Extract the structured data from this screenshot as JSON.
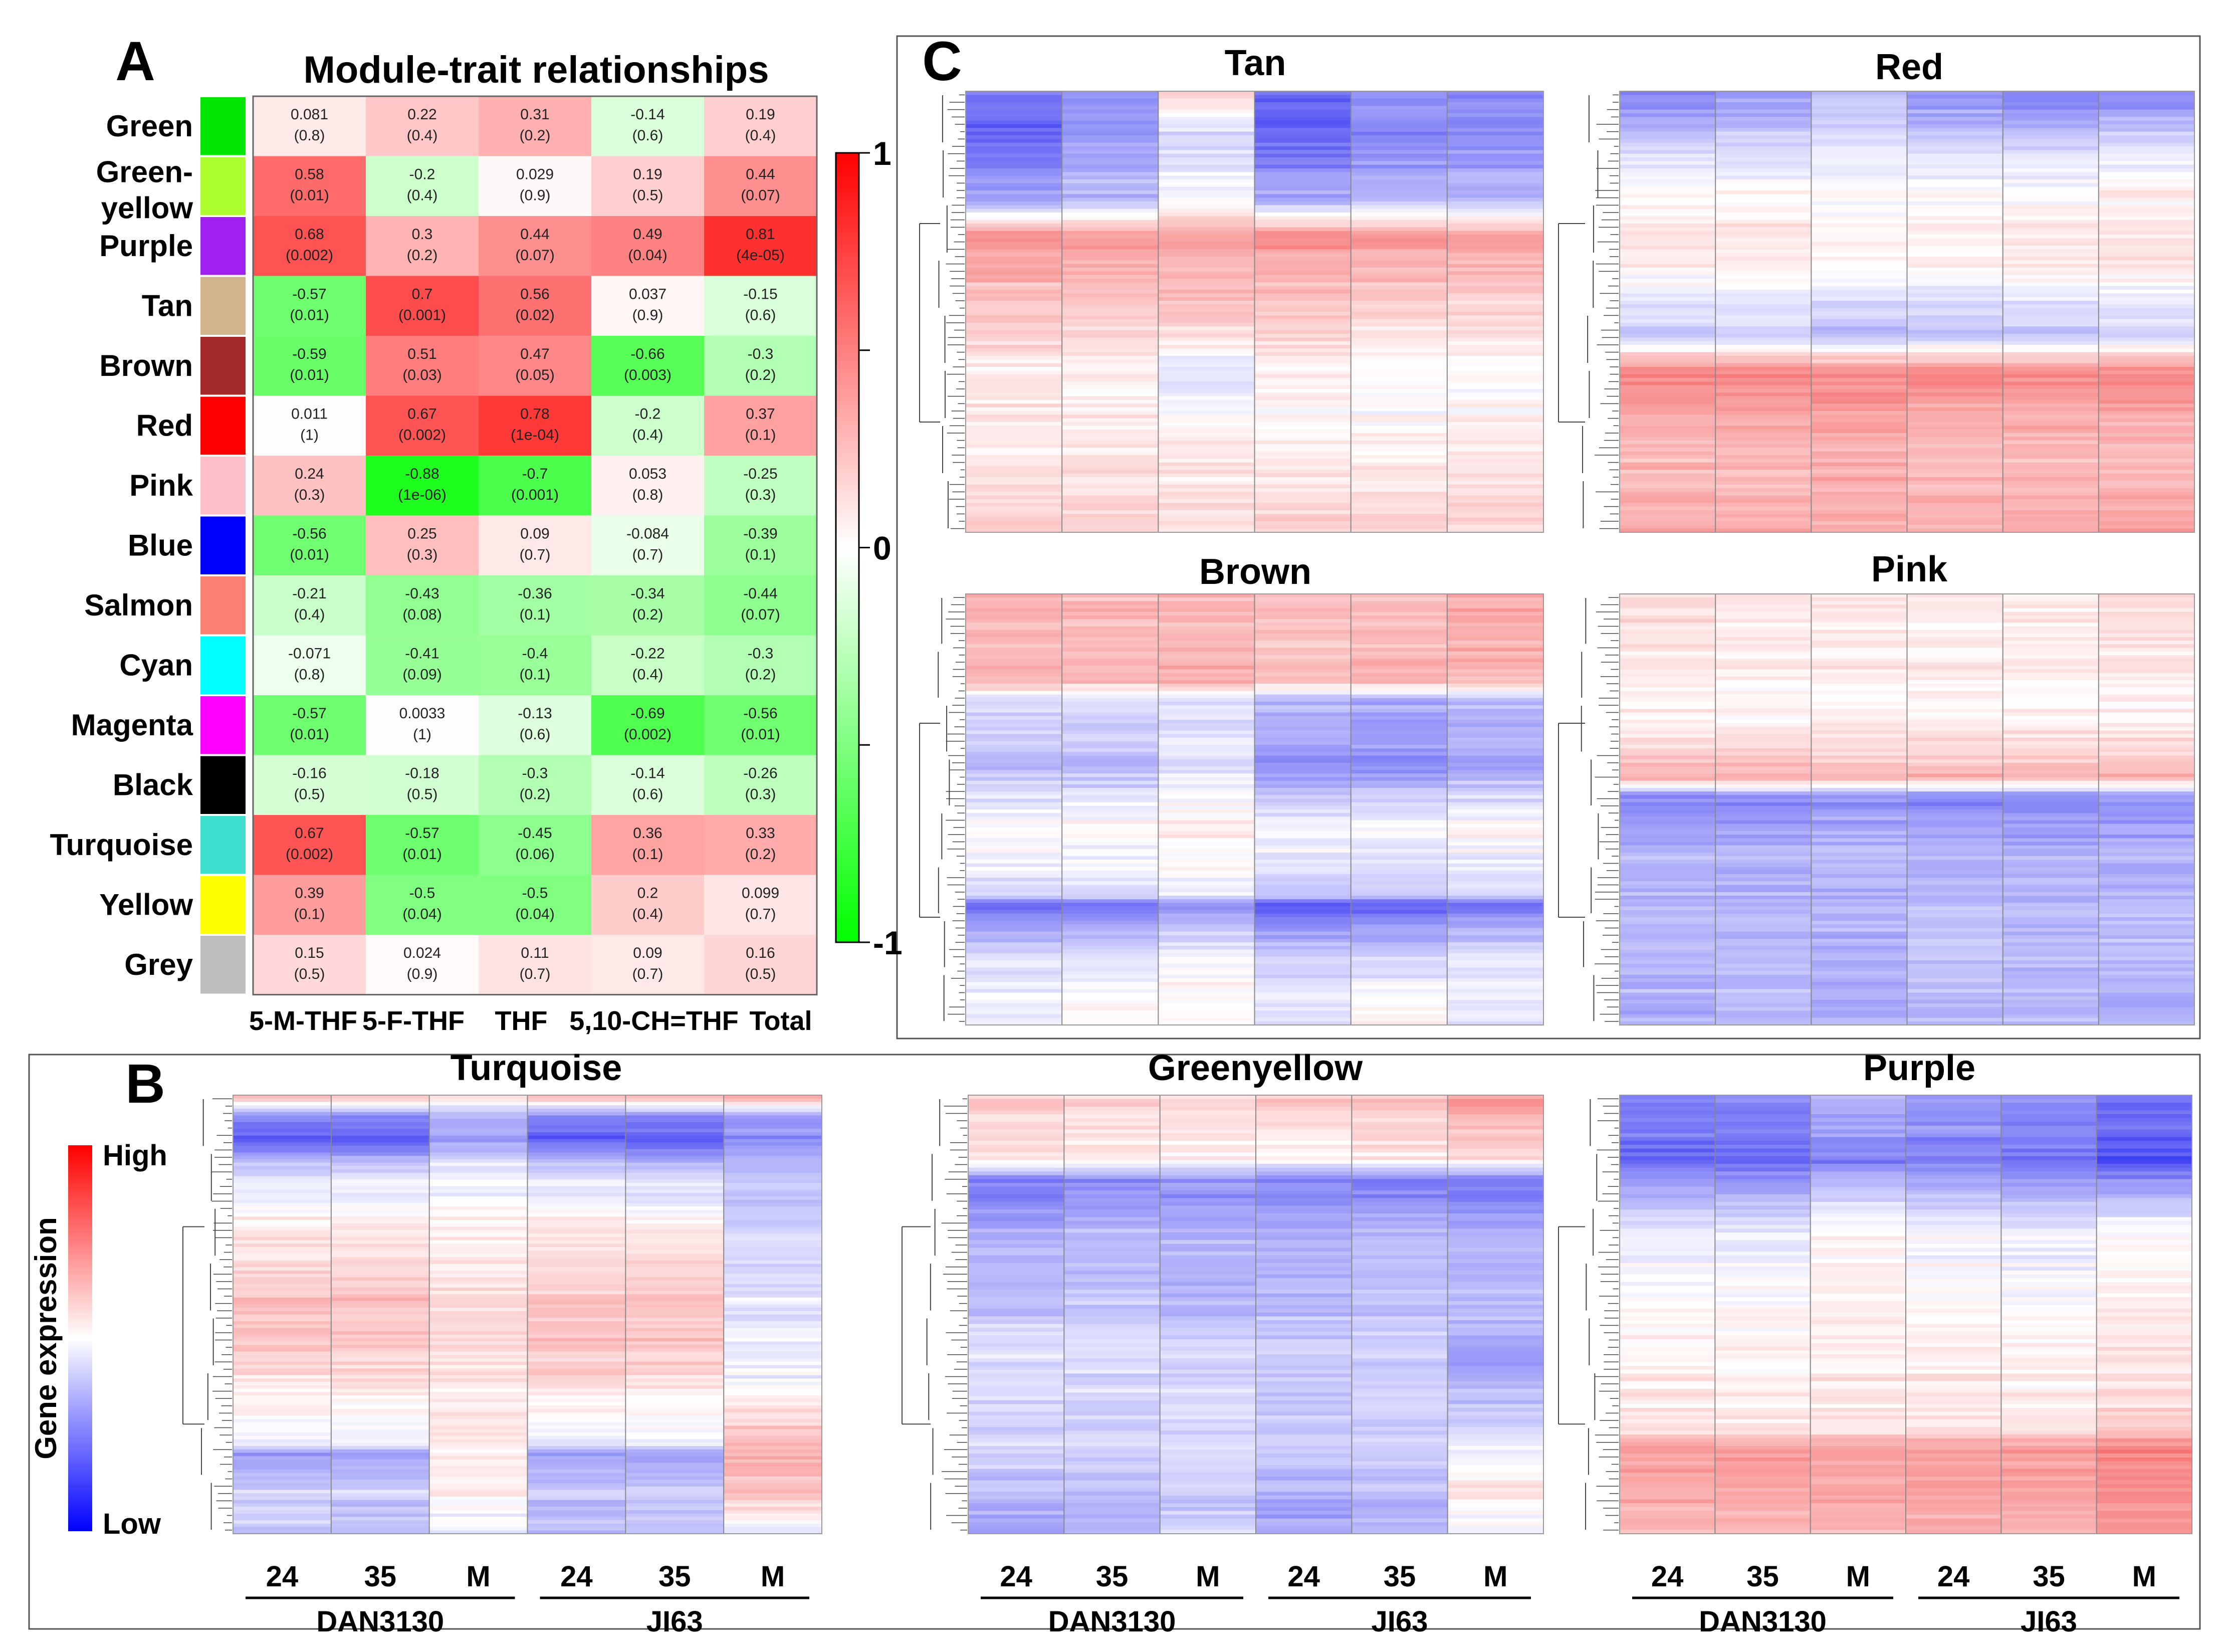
{
  "panels": {
    "a": "A",
    "b": "B",
    "c": "C"
  },
  "chart_data": [
    {
      "type": "heatmap",
      "panel": "A",
      "title": "Module-trait relationships",
      "modules": [
        "Green",
        "Green-yellow",
        "Purple",
        "Tan",
        "Brown",
        "Red",
        "Pink",
        "Blue",
        "Salmon",
        "Cyan",
        "Magenta",
        "Black",
        "Turquoise",
        "Yellow",
        "Grey"
      ],
      "module_colors": [
        "#00e600",
        "#adff2f",
        "#a020f0",
        "#d2b48c",
        "#a52a2a",
        "#ff0000",
        "#ffc0cb",
        "#0000ff",
        "#fa8072",
        "#00ffff",
        "#ff00ff",
        "#000000",
        "#40e0d0",
        "#ffff00",
        "#bebebe"
      ],
      "traits": [
        "5-M-THF",
        "5-F-THF",
        "THF",
        "5,10-CH=THF",
        "Total"
      ],
      "correlations": [
        [
          0.081,
          0.22,
          0.31,
          -0.14,
          0.19
        ],
        [
          0.58,
          -0.2,
          0.029,
          0.19,
          0.44
        ],
        [
          0.68,
          0.3,
          0.44,
          0.49,
          0.81
        ],
        [
          -0.57,
          0.7,
          0.56,
          0.037,
          -0.15
        ],
        [
          -0.59,
          0.51,
          0.47,
          -0.66,
          -0.3
        ],
        [
          0.011,
          0.67,
          0.78,
          -0.2,
          0.37
        ],
        [
          0.24,
          -0.88,
          -0.7,
          0.053,
          -0.25
        ],
        [
          -0.56,
          0.25,
          0.09,
          -0.084,
          -0.39
        ],
        [
          -0.21,
          -0.43,
          -0.36,
          -0.34,
          -0.44
        ],
        [
          -0.071,
          -0.41,
          -0.4,
          -0.22,
          -0.3
        ],
        [
          -0.57,
          0.0033,
          -0.13,
          -0.69,
          -0.56
        ],
        [
          -0.16,
          -0.18,
          -0.3,
          -0.14,
          -0.26
        ],
        [
          0.67,
          -0.57,
          -0.45,
          0.36,
          0.33
        ],
        [
          0.39,
          -0.5,
          -0.5,
          0.2,
          0.099
        ],
        [
          0.15,
          0.024,
          0.11,
          0.09,
          0.16
        ]
      ],
      "corr_labels": [
        [
          "0.081",
          "0.22",
          "0.31",
          "-0.14",
          "0.19"
        ],
        [
          "0.58",
          "-0.2",
          "0.029",
          "0.19",
          "0.44"
        ],
        [
          "0.68",
          "0.3",
          "0.44",
          "0.49",
          "0.81"
        ],
        [
          "-0.57",
          "0.7",
          "0.56",
          "0.037",
          "-0.15"
        ],
        [
          "-0.59",
          "0.51",
          "0.47",
          "-0.66",
          "-0.3"
        ],
        [
          "0.011",
          "0.67",
          "0.78",
          "-0.2",
          "0.37"
        ],
        [
          "0.24",
          "-0.88",
          "-0.7",
          "0.053",
          "-0.25"
        ],
        [
          "-0.56",
          "0.25",
          "0.09",
          "-0.084",
          "-0.39"
        ],
        [
          "-0.21",
          "-0.43",
          "-0.36",
          "-0.34",
          "-0.44"
        ],
        [
          "-0.071",
          "-0.41",
          "-0.4",
          "-0.22",
          "-0.3"
        ],
        [
          "-0.57",
          "0.0033",
          "-0.13",
          "-0.69",
          "-0.56"
        ],
        [
          "-0.16",
          "-0.18",
          "-0.3",
          "-0.14",
          "-0.26"
        ],
        [
          "0.67",
          "-0.57",
          "-0.45",
          "0.36",
          "0.33"
        ],
        [
          "0.39",
          "-0.5",
          "-0.5",
          "0.2",
          "0.099"
        ],
        [
          "0.15",
          "0.024",
          "0.11",
          "0.09",
          "0.16"
        ]
      ],
      "pvalues": [
        [
          "(0.8)",
          "(0.4)",
          "(0.2)",
          "(0.6)",
          "(0.4)"
        ],
        [
          "(0.01)",
          "(0.4)",
          "(0.9)",
          "(0.5)",
          "(0.07)"
        ],
        [
          "(0.002)",
          "(0.2)",
          "(0.07)",
          "(0.04)",
          "(4e-05)"
        ],
        [
          "(0.01)",
          "(0.001)",
          "(0.02)",
          "(0.9)",
          "(0.6)"
        ],
        [
          "(0.01)",
          "(0.03)",
          "(0.05)",
          "(0.003)",
          "(0.2)"
        ],
        [
          "(1)",
          "(0.002)",
          "(1e-04)",
          "(0.4)",
          "(0.1)"
        ],
        [
          "(0.3)",
          "(1e-06)",
          "(0.001)",
          "(0.8)",
          "(0.3)"
        ],
        [
          "(0.01)",
          "(0.3)",
          "(0.7)",
          "(0.7)",
          "(0.1)"
        ],
        [
          "(0.4)",
          "(0.08)",
          "(0.1)",
          "(0.2)",
          "(0.07)"
        ],
        [
          "(0.8)",
          "(0.09)",
          "(0.1)",
          "(0.4)",
          "(0.2)"
        ],
        [
          "(0.01)",
          "(1)",
          "(0.6)",
          "(0.002)",
          "(0.01)"
        ],
        [
          "(0.5)",
          "(0.5)",
          "(0.2)",
          "(0.6)",
          "(0.3)"
        ],
        [
          "(0.002)",
          "(0.01)",
          "(0.06)",
          "(0.1)",
          "(0.2)"
        ],
        [
          "(0.1)",
          "(0.04)",
          "(0.04)",
          "(0.4)",
          "(0.7)"
        ],
        [
          "(0.5)",
          "(0.9)",
          "(0.7)",
          "(0.7)",
          "(0.5)"
        ]
      ],
      "colorbar": {
        "range": [
          -1,
          1
        ],
        "labels": [
          "1",
          "0",
          "-1"
        ],
        "high_color": "#ff0000",
        "mid_color": "#ffffff",
        "low_color": "#00ff00"
      }
    },
    {
      "type": "heatmap",
      "panel": "B",
      "legend": {
        "title": "Gene expression",
        "high": "High",
        "low": "Low"
      },
      "column_labels": [
        "24",
        "35",
        "M",
        "24",
        "35",
        "M"
      ],
      "group_labels": [
        "DAN3130",
        "JI63"
      ],
      "heatmaps": [
        {
          "title": "Turquoise",
          "profile": [
            [
              0,
              0.35,
              0.35,
              0.2,
              0.35,
              0.35,
              0.5
            ],
            [
              0.05,
              -0.5,
              -0.5,
              -0.3,
              -0.5,
              -0.5,
              -0.4
            ],
            [
              0.1,
              -0.75,
              -0.75,
              -0.45,
              -0.75,
              -0.75,
              -0.5
            ],
            [
              0.15,
              -0.25,
              -0.25,
              -0.1,
              -0.25,
              -0.3,
              -0.3
            ],
            [
              0.3,
              0.1,
              0.1,
              0.05,
              0.1,
              0.1,
              -0.2
            ],
            [
              0.5,
              0.3,
              0.3,
              0.2,
              0.3,
              0.3,
              -0.1
            ],
            [
              0.65,
              0.15,
              0.15,
              0.1,
              0.2,
              0.15,
              -0.05
            ],
            [
              0.8,
              -0.1,
              -0.1,
              0.1,
              -0.1,
              -0.1,
              0.35
            ],
            [
              0.82,
              -0.5,
              -0.45,
              0.05,
              -0.45,
              -0.45,
              0.3
            ],
            [
              0.9,
              -0.2,
              -0.2,
              0.05,
              -0.25,
              -0.2,
              0.3
            ],
            [
              1,
              -0.25,
              -0.3,
              -0.1,
              -0.3,
              -0.3,
              -0.1
            ]
          ]
        },
        {
          "title": "Greenyellow",
          "profile": [
            [
              0,
              0.25,
              0.2,
              0.2,
              0.25,
              0.3,
              0.45
            ],
            [
              0.15,
              0.1,
              0.1,
              0.05,
              0.05,
              0.1,
              0.15
            ],
            [
              0.2,
              -0.6,
              -0.55,
              -0.5,
              -0.55,
              -0.6,
              -0.65
            ],
            [
              0.3,
              -0.35,
              -0.3,
              -0.35,
              -0.35,
              -0.3,
              -0.35
            ],
            [
              0.5,
              -0.25,
              -0.25,
              -0.3,
              -0.3,
              -0.25,
              -0.3
            ],
            [
              0.6,
              -0.15,
              -0.15,
              -0.2,
              -0.25,
              -0.2,
              -0.45
            ],
            [
              0.8,
              -0.2,
              -0.2,
              -0.15,
              -0.25,
              -0.2,
              -0.1
            ],
            [
              0.92,
              -0.3,
              -0.3,
              -0.25,
              -0.35,
              -0.3,
              0.15
            ],
            [
              1,
              -0.45,
              -0.35,
              -0.2,
              -0.45,
              -0.35,
              -0.1
            ]
          ]
        },
        {
          "title": "Purple",
          "profile": [
            [
              0,
              -0.55,
              -0.5,
              -0.35,
              -0.45,
              -0.5,
              -0.6
            ],
            [
              0.15,
              -0.65,
              -0.65,
              -0.55,
              -0.55,
              -0.6,
              -0.75
            ],
            [
              0.3,
              -0.1,
              -0.1,
              0.05,
              -0.05,
              -0.1,
              0
            ],
            [
              0.55,
              0.05,
              0.05,
              0.1,
              0.05,
              0.05,
              0.1
            ],
            [
              0.76,
              0.1,
              0.1,
              0.1,
              0.1,
              0.1,
              0.2
            ],
            [
              0.8,
              0.45,
              0.45,
              0.45,
              0.45,
              0.45,
              0.55
            ],
            [
              1,
              0.3,
              0.3,
              0.3,
              0.35,
              0.35,
              0.45
            ]
          ]
        }
      ]
    },
    {
      "type": "heatmap",
      "panel": "C",
      "heatmaps": [
        {
          "title": "Tan",
          "profile": [
            [
              0,
              -0.55,
              -0.45,
              0.25,
              -0.65,
              -0.45,
              -0.5
            ],
            [
              0.1,
              -0.7,
              -0.45,
              -0.2,
              -0.7,
              -0.55,
              -0.5
            ],
            [
              0.25,
              -0.4,
              -0.3,
              0,
              -0.35,
              -0.3,
              -0.3
            ],
            [
              0.33,
              0.5,
              0.45,
              0.4,
              0.5,
              0.45,
              0.45
            ],
            [
              0.5,
              0.2,
              0.2,
              0.25,
              0.2,
              0.15,
              0.15
            ],
            [
              0.65,
              0.1,
              0.05,
              -0.15,
              0.05,
              0,
              0
            ],
            [
              0.8,
              0.1,
              0.1,
              0.1,
              0.05,
              0.05,
              0.1
            ],
            [
              1,
              0.2,
              0.2,
              0.15,
              0.2,
              0.2,
              0.2
            ]
          ]
        },
        {
          "title": "Red",
          "profile": [
            [
              0,
              -0.55,
              -0.45,
              -0.3,
              -0.5,
              -0.6,
              -0.55
            ],
            [
              0.15,
              -0.1,
              -0.1,
              -0.05,
              -0.1,
              -0.1,
              -0.05
            ],
            [
              0.35,
              0.15,
              0.15,
              0.1,
              0.1,
              0.15,
              0.15
            ],
            [
              0.55,
              -0.25,
              -0.2,
              -0.3,
              -0.25,
              -0.25,
              -0.2
            ],
            [
              0.64,
              0.55,
              0.55,
              0.55,
              0.55,
              0.55,
              0.55
            ],
            [
              0.8,
              0.3,
              0.3,
              0.35,
              0.3,
              0.3,
              0.3
            ],
            [
              1,
              0.35,
              0.35,
              0.35,
              0.35,
              0.35,
              0.4
            ]
          ]
        },
        {
          "title": "Brown",
          "profile": [
            [
              0,
              0.3,
              0.3,
              0.3,
              0.25,
              0.3,
              0.35
            ],
            [
              0.2,
              0.35,
              0.3,
              0.35,
              0.3,
              0.35,
              0.35
            ],
            [
              0.25,
              -0.15,
              -0.15,
              -0.1,
              -0.3,
              -0.35,
              -0.3
            ],
            [
              0.4,
              -0.3,
              -0.3,
              -0.15,
              -0.5,
              -0.5,
              -0.4
            ],
            [
              0.55,
              0.05,
              0.05,
              0.1,
              0,
              0,
              0.05
            ],
            [
              0.7,
              -0.2,
              -0.2,
              -0.1,
              -0.25,
              -0.25,
              -0.2
            ],
            [
              0.72,
              -0.65,
              -0.6,
              -0.45,
              -0.75,
              -0.7,
              -0.6
            ],
            [
              0.85,
              -0.1,
              -0.1,
              0,
              -0.15,
              -0.15,
              -0.1
            ],
            [
              1,
              -0.1,
              0.05,
              0,
              -0.15,
              0.05,
              -0.15
            ]
          ]
        },
        {
          "title": "Pink",
          "profile": [
            [
              0,
              0.15,
              0.1,
              0.1,
              0.1,
              0.1,
              0.15
            ],
            [
              0.3,
              0.05,
              0.05,
              0.05,
              0.05,
              0.05,
              0.05
            ],
            [
              0.43,
              0.35,
              0.35,
              0.35,
              0.35,
              0.35,
              0.35
            ],
            [
              0.47,
              -0.55,
              -0.55,
              -0.5,
              -0.55,
              -0.55,
              -0.5
            ],
            [
              0.6,
              -0.35,
              -0.35,
              -0.3,
              -0.35,
              -0.35,
              -0.35
            ],
            [
              0.8,
              -0.3,
              -0.3,
              -0.35,
              -0.25,
              -0.3,
              -0.3
            ],
            [
              1,
              -0.35,
              -0.3,
              -0.35,
              -0.3,
              -0.3,
              -0.35
            ]
          ]
        }
      ]
    }
  ]
}
